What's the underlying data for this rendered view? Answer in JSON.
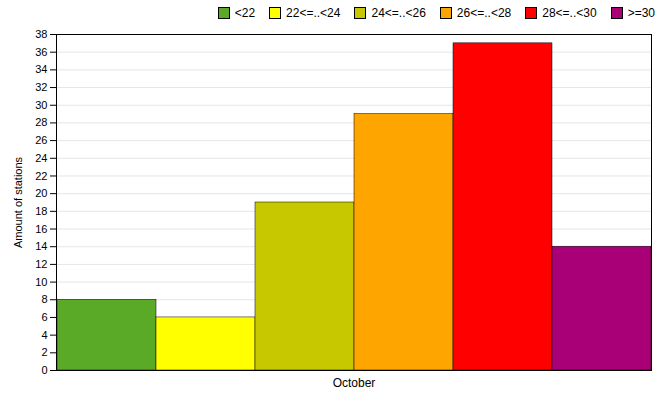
{
  "chart_data": {
    "type": "bar",
    "categories": [
      "<22",
      "22<=..<24",
      "24<=..<26",
      "26<=..<28",
      "28<=..<30",
      ">=30"
    ],
    "values": [
      8,
      6,
      19,
      29,
      37,
      14
    ],
    "colors": [
      "#5aaa28",
      "#ffff00",
      "#c8c800",
      "#ffa500",
      "#ff0000",
      "#aa0077"
    ],
    "xlabel": "October",
    "ylabel": "Amount of stations",
    "ylim": [
      0,
      38
    ],
    "yticks": [
      0,
      2,
      4,
      6,
      8,
      10,
      12,
      14,
      16,
      18,
      20,
      22,
      24,
      26,
      28,
      30,
      32,
      34,
      36,
      38
    ],
    "grid": true,
    "legend": "upper right"
  }
}
